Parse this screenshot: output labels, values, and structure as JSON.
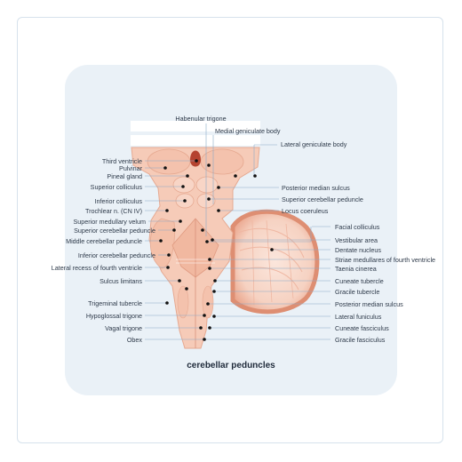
{
  "diagram": {
    "caption": "cerebellar peduncles",
    "labels": {
      "habenular_trigone": "Habenular trigone",
      "medial_geniculate_body": "Medial geniculate body",
      "lateral_geniculate_body": "Lateral geniculate body",
      "third_ventricle": "Third ventricle",
      "pulvinar": "Pulvinar",
      "pineal_gland": "Pineal gland",
      "superior_colliculus": "Superior colliculus",
      "inferior_colliculus": "Inferior colliculus",
      "trochlear_n": "Trochlear n. (CN IV)",
      "superior_medullary_velum": "Superior medullary velum",
      "superior_cerebellar_peduncle_left": "Superior cerebellar peduncle",
      "middle_cerebellar_peduncle": "Middle cerebellar peduncle",
      "inferior_cerebellar_peduncle": "Inferior cerebellar peduncle",
      "lateral_recess": "Lateral recess of fourth ventricle",
      "sulcus_limitans": "Sulcus limitans",
      "trigeminal_tubercle": "Trigeminal tubercle",
      "hypoglossal_trigone": "Hypoglossal trigone",
      "vagal_trigone": "Vagal trigone",
      "obex": "Obex",
      "posterior_median_sulcus_top": "Posterior median sulcus",
      "superior_cerebellar_peduncle_right": "Superior cerebellar peduncle",
      "locus_coeruleus": "Locus coeruleus",
      "facial_colliculus": "Facial colliculus",
      "vestibular_area": "Vestibular area",
      "dentate_nucleus": "Dentate nucleus",
      "striae_medullares": "Striae medullares of fourth ventricle",
      "taenia_cinerea": "Taenia cinerea",
      "cuneate_tubercle": "Cuneate tubercle",
      "gracile_tubercle": "Gracile tubercle",
      "posterior_median_sulcus_bottom": "Posterior median sulcus",
      "lateral_funiculus": "Lateral funiculus",
      "cuneate_fasciculus": "Cuneate fasciculus",
      "gracile_fasciculus": "Gracile fasciculus"
    },
    "colors": {
      "panel": "#eaf1f7",
      "tissue": "#f6cbb8",
      "tissue_dark": "#e8a489",
      "cerebellum_edge": "#de8e72",
      "leader_line": "#8aaac8",
      "dot": "#111111"
    }
  }
}
